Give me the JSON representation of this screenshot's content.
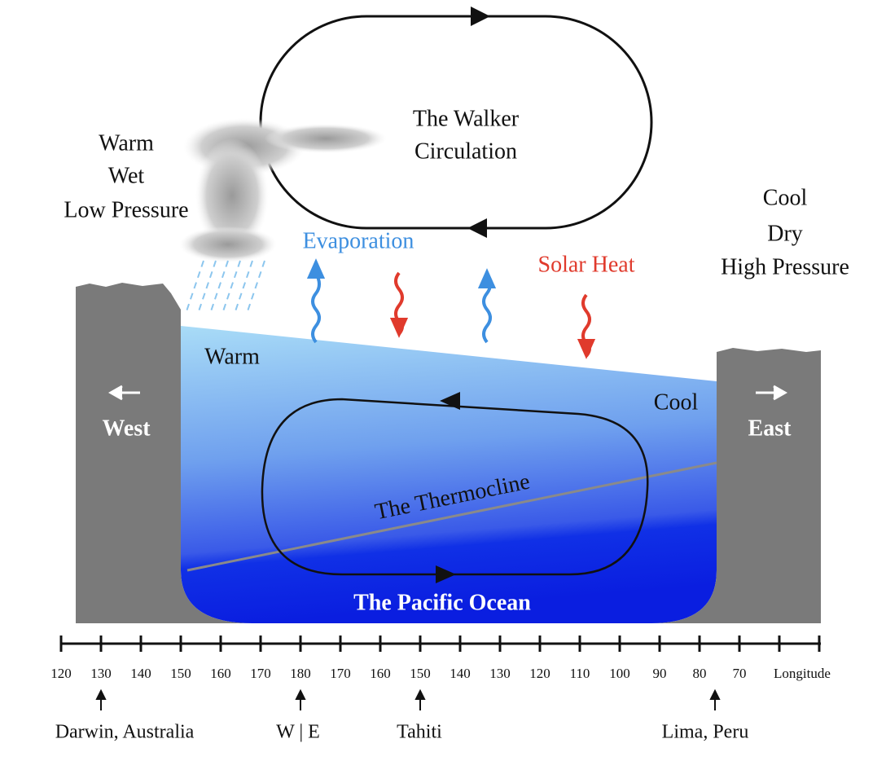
{
  "title_lines": [
    "The Walker",
    "Circulation"
  ],
  "west_conditions": [
    "Warm",
    "Wet",
    "Low Pressure"
  ],
  "east_conditions": [
    "Cool",
    "Dry",
    "High Pressure"
  ],
  "evaporation": "Evaporation",
  "solar_heat": "Solar Heat",
  "ocean_warm": "Warm",
  "ocean_cool": "Cool",
  "west": "West",
  "east": "East",
  "thermocline": "The Thermocline",
  "ocean_name": "The Pacific Ocean",
  "longitudes": [
    120,
    130,
    140,
    150,
    160,
    170,
    180,
    170,
    160,
    150,
    140,
    130,
    120,
    110,
    100,
    90,
    80,
    70
  ],
  "axis_label": "Longitude",
  "places": [
    "Darwin, Australia",
    "W | E",
    "Tahiti",
    "Lima, Peru"
  ]
}
